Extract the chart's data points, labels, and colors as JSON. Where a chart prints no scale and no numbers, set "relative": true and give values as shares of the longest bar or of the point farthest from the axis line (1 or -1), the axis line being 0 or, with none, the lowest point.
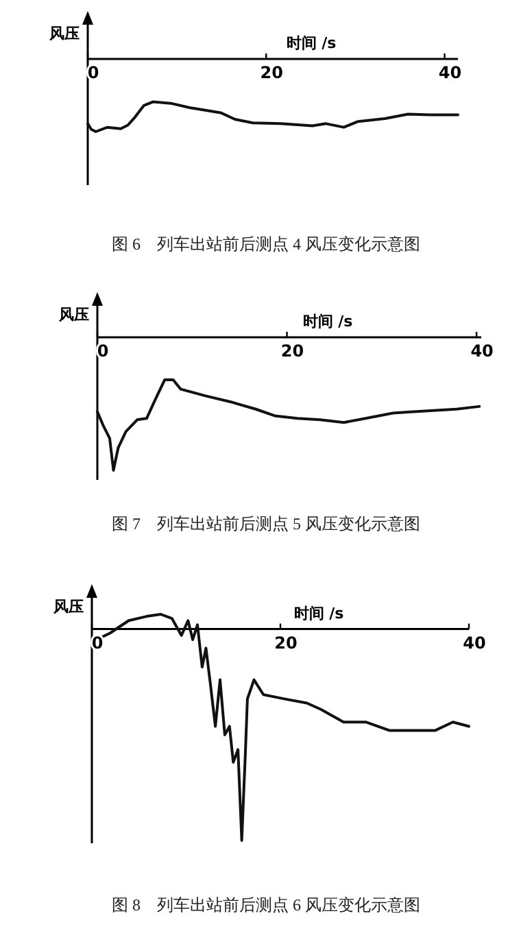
{
  "chart_data": [
    {
      "type": "line",
      "relative": true,
      "title": "图 6　列车出站前后测点 4 风压变化示意图",
      "xlabel": "时间 /s",
      "ylabel": "风压",
      "xlim": [
        0,
        41.5
      ],
      "xticks": [
        0,
        20,
        40
      ],
      "series": [
        {
          "color": "#111111",
          "x": [
            0,
            0.4,
            0.9,
            2.2,
            3.7,
            4.5,
            5.3,
            6.3,
            7.3,
            9.3,
            11.4,
            13.4,
            14.9,
            16.5,
            18.5,
            21.6,
            25.2,
            26.7,
            28.7,
            30.3,
            33.3,
            35.9,
            38.4,
            41.5
          ],
          "values": [
            -0.89,
            -0.97,
            -1,
            -0.94,
            -0.96,
            -0.91,
            -0.8,
            -0.64,
            -0.59,
            -0.61,
            -0.67,
            -0.71,
            -0.74,
            -0.83,
            -0.88,
            -0.89,
            -0.92,
            -0.89,
            -0.94,
            -0.86,
            -0.82,
            -0.76,
            -0.77,
            -0.77
          ]
        }
      ]
    },
    {
      "type": "line",
      "relative": true,
      "title": "图 7　列车出站前后测点 5 风压变化示意图",
      "xlabel": "时间 /s",
      "ylabel": "风压",
      "xlim": [
        0,
        40.5
      ],
      "xticks": [
        0,
        20,
        40
      ],
      "series": [
        {
          "color": "#111111",
          "x": [
            0,
            0.6,
            1.3,
            1.7,
            2.2,
            3.0,
            4.2,
            5.2,
            6.1,
            7.1,
            8.0,
            8.8,
            11.4,
            14.3,
            16.7,
            18.7,
            21.1,
            23.5,
            26.0,
            28.3,
            31.2,
            33.1,
            35.5,
            37.9,
            40.3
          ],
          "values": [
            -0.56,
            -0.66,
            -0.76,
            -1,
            -0.83,
            -0.71,
            -0.62,
            -0.61,
            -0.47,
            -0.32,
            -0.32,
            -0.39,
            -0.44,
            -0.49,
            -0.54,
            -0.59,
            -0.61,
            -0.62,
            -0.64,
            -0.61,
            -0.57,
            -0.56,
            -0.55,
            -0.54,
            -0.52
          ]
        }
      ]
    },
    {
      "type": "line",
      "relative": true,
      "title": "图 8　列车出站前后测点 6 风压变化示意图",
      "xlabel": "时间 /s",
      "ylabel": "风压",
      "xlim": [
        0,
        40
      ],
      "xticks": [
        0,
        20,
        40
      ],
      "series": [
        {
          "color": "#111111",
          "x": [
            0,
            1.9,
            3.9,
            5.8,
            7.3,
            8.5,
            9.5,
            10.2,
            10.7,
            11.2,
            11.7,
            12.1,
            12.6,
            13.1,
            13.6,
            14.1,
            14.6,
            15.0,
            15.5,
            15.9,
            16.3,
            16.5,
            17.2,
            18.2,
            20.4,
            22.8,
            24.3,
            26.7,
            29.1,
            31.6,
            34.0,
            36.4,
            38.3,
            40
          ],
          "values": [
            -0.06,
            -0.02,
            0.04,
            0.06,
            0.07,
            0.05,
            -0.03,
            0.04,
            -0.05,
            0.02,
            -0.18,
            -0.09,
            -0.27,
            -0.46,
            -0.24,
            -0.5,
            -0.46,
            -0.63,
            -0.57,
            -1,
            -0.57,
            -0.33,
            -0.24,
            -0.31,
            -0.33,
            -0.35,
            -0.38,
            -0.44,
            -0.44,
            -0.48,
            -0.48,
            -0.48,
            -0.44,
            -0.46
          ]
        }
      ]
    }
  ]
}
